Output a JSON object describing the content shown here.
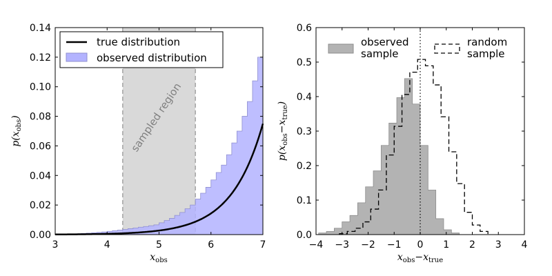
{
  "chart_data": [
    {
      "type": "area",
      "xlabel": "x_obs",
      "ylabel": "p(x_obs)",
      "xlim": [
        3,
        7
      ],
      "ylim": [
        0,
        0.14
      ],
      "xticks": [
        "3",
        "4",
        "5",
        "6",
        "7"
      ],
      "yticks": [
        "0.00",
        "0.02",
        "0.04",
        "0.06",
        "0.08",
        "0.10",
        "0.12",
        "0.14"
      ],
      "grid": false,
      "legend_position": "top-left",
      "sampled_region": {
        "x0": 4.3,
        "x1": 5.7,
        "label": "sampled region",
        "color": "#d9d9d9"
      },
      "series": [
        {
          "name": "true distribution",
          "kind": "line",
          "color": "#000000",
          "curve": "exponential",
          "x": [
            3.0,
            3.5,
            4.0,
            4.5,
            5.0,
            5.5,
            6.0,
            6.5,
            7.0
          ],
          "y": [
            0.0001,
            0.0008,
            0.0024,
            0.0045,
            0.0068,
            0.01,
            0.022,
            0.042,
            0.075
          ]
        },
        {
          "name": "observed distribution",
          "kind": "histogram",
          "color": "#b3b3ff",
          "edge_color": "#8f8fcf",
          "bin_edges": [
            3.0,
            3.1,
            3.2,
            3.3,
            3.4,
            3.5,
            3.6,
            3.7,
            3.8,
            3.9,
            4.0,
            4.1,
            4.2,
            4.3,
            4.4,
            4.5,
            4.6,
            4.7,
            4.8,
            4.9,
            5.0,
            5.1,
            5.2,
            5.3,
            5.4,
            5.5,
            5.6,
            5.7,
            5.8,
            5.9,
            6.0,
            6.1,
            6.2,
            6.3,
            6.4,
            6.5,
            6.6,
            6.7,
            6.8,
            6.9,
            7.0
          ],
          "values": [
            0.0002,
            0.0003,
            0.0004,
            0.0005,
            0.0006,
            0.0008,
            0.001,
            0.0012,
            0.0015,
            0.0018,
            0.0022,
            0.0026,
            0.003,
            0.0035,
            0.004,
            0.0045,
            0.005,
            0.0055,
            0.006,
            0.0066,
            0.008,
            0.0095,
            0.011,
            0.013,
            0.015,
            0.0175,
            0.02,
            0.024,
            0.028,
            0.032,
            0.037,
            0.042,
            0.047,
            0.054,
            0.062,
            0.07,
            0.08,
            0.09,
            0.104,
            0.12
          ]
        }
      ]
    },
    {
      "type": "area",
      "xlabel": "x_obs − x_true",
      "ylabel": "p(x_obs − x_true)",
      "xlim": [
        -4,
        4
      ],
      "ylim": [
        0,
        0.65
      ],
      "xticks": [
        "−4",
        "−3",
        "−2",
        "−1",
        "0",
        "1",
        "2",
        "3",
        "4"
      ],
      "yticks": [
        "0.0",
        "0.1",
        "0.2",
        "0.3",
        "0.4",
        "0.5",
        "0.6"
      ],
      "grid": false,
      "legend_position": "top",
      "reference_line_x": 0,
      "series": [
        {
          "name": "observed sample",
          "kind": "histogram",
          "color": "#b3b3b3",
          "edge_color": "#8c8c8c",
          "bin_edges": [
            -3.9,
            -3.6,
            -3.3,
            -3.0,
            -2.7,
            -2.4,
            -2.1,
            -1.8,
            -1.5,
            -1.2,
            -0.9,
            -0.6,
            -0.3,
            0.0,
            0.3,
            0.6,
            0.9,
            1.2,
            1.5
          ],
          "values": [
            0.005,
            0.01,
            0.02,
            0.04,
            0.06,
            0.1,
            0.15,
            0.2,
            0.28,
            0.35,
            0.43,
            0.49,
            0.41,
            0.28,
            0.14,
            0.05,
            0.015,
            0.005
          ]
        },
        {
          "name": "random sample",
          "kind": "step",
          "color": "#000000",
          "dashed": true,
          "bin_edges": [
            -3.1,
            -2.8,
            -2.5,
            -2.2,
            -1.9,
            -1.6,
            -1.3,
            -1.0,
            -0.7,
            -0.4,
            -0.1,
            0.2,
            0.5,
            0.8,
            1.1,
            1.4,
            1.7,
            2.0,
            2.3,
            2.6
          ],
          "values": [
            0.003,
            0.01,
            0.02,
            0.04,
            0.08,
            0.14,
            0.25,
            0.34,
            0.44,
            0.51,
            0.55,
            0.53,
            0.47,
            0.37,
            0.26,
            0.16,
            0.07,
            0.03,
            0.01
          ]
        }
      ]
    }
  ]
}
